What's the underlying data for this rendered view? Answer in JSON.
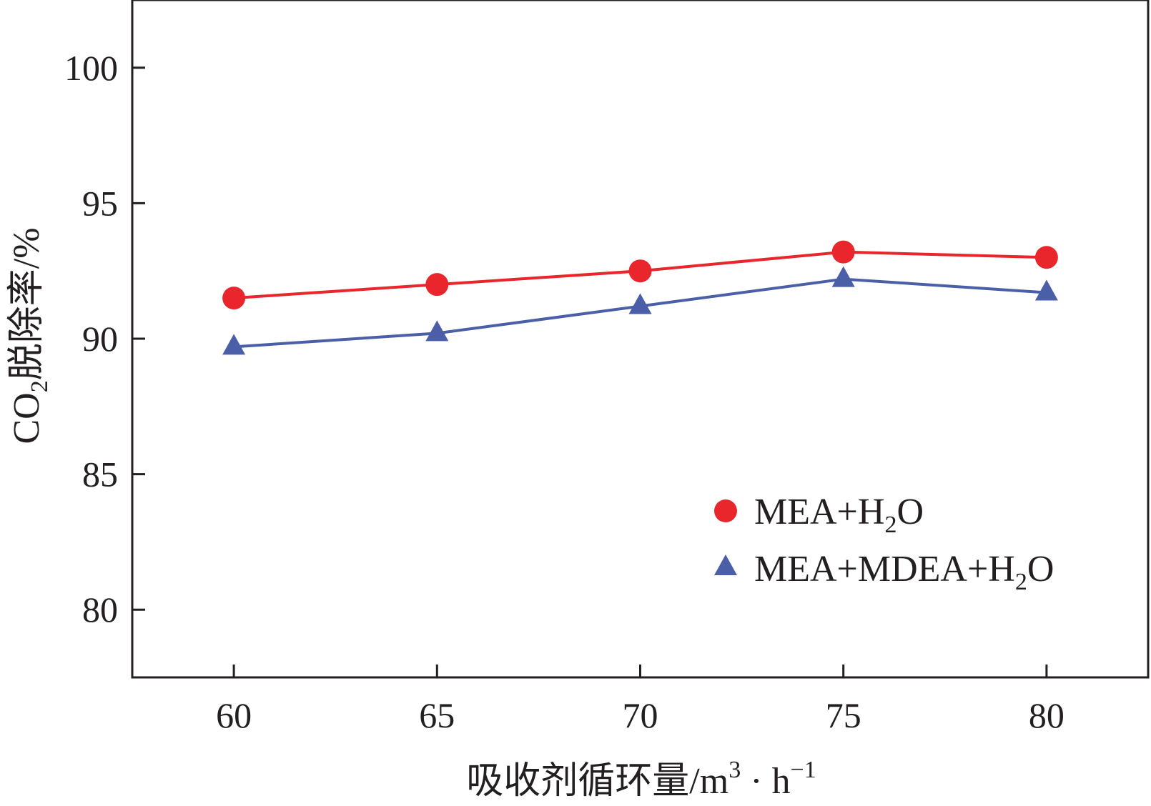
{
  "chart_data": {
    "type": "line",
    "title": "",
    "xlabel": {
      "main": "吸收剂循环量/m",
      "sup1": "3",
      "mid": " · h",
      "sup2": "−1"
    },
    "ylabel": {
      "pre": "CO",
      "sub": "2",
      "post": "脱除率/%"
    },
    "x": [
      60,
      65,
      70,
      75,
      80
    ],
    "xlim": [
      57.5,
      82.5
    ],
    "ylim": [
      77.5,
      102.5
    ],
    "xticks": [
      "60",
      "65",
      "70",
      "75",
      "80"
    ],
    "yticks": [
      "80",
      "85",
      "90",
      "95",
      "100"
    ],
    "grid": false,
    "legend_position": "bottom-right",
    "series": [
      {
        "name": "MEA+H2O",
        "label_parts": {
          "pre": "MEA+H",
          "sub": "2",
          "post": "O"
        },
        "marker": "circle",
        "color": "#e8262b",
        "values": [
          91.5,
          92.0,
          92.5,
          93.2,
          93.0
        ]
      },
      {
        "name": "MEA+MDEA+H2O",
        "label_parts": {
          "pre": "MEA+MDEA+H",
          "sub": "2",
          "post": "O"
        },
        "marker": "triangle",
        "color": "#4a5fa8",
        "values": [
          89.7,
          90.2,
          91.2,
          92.2,
          91.7
        ]
      }
    ]
  }
}
